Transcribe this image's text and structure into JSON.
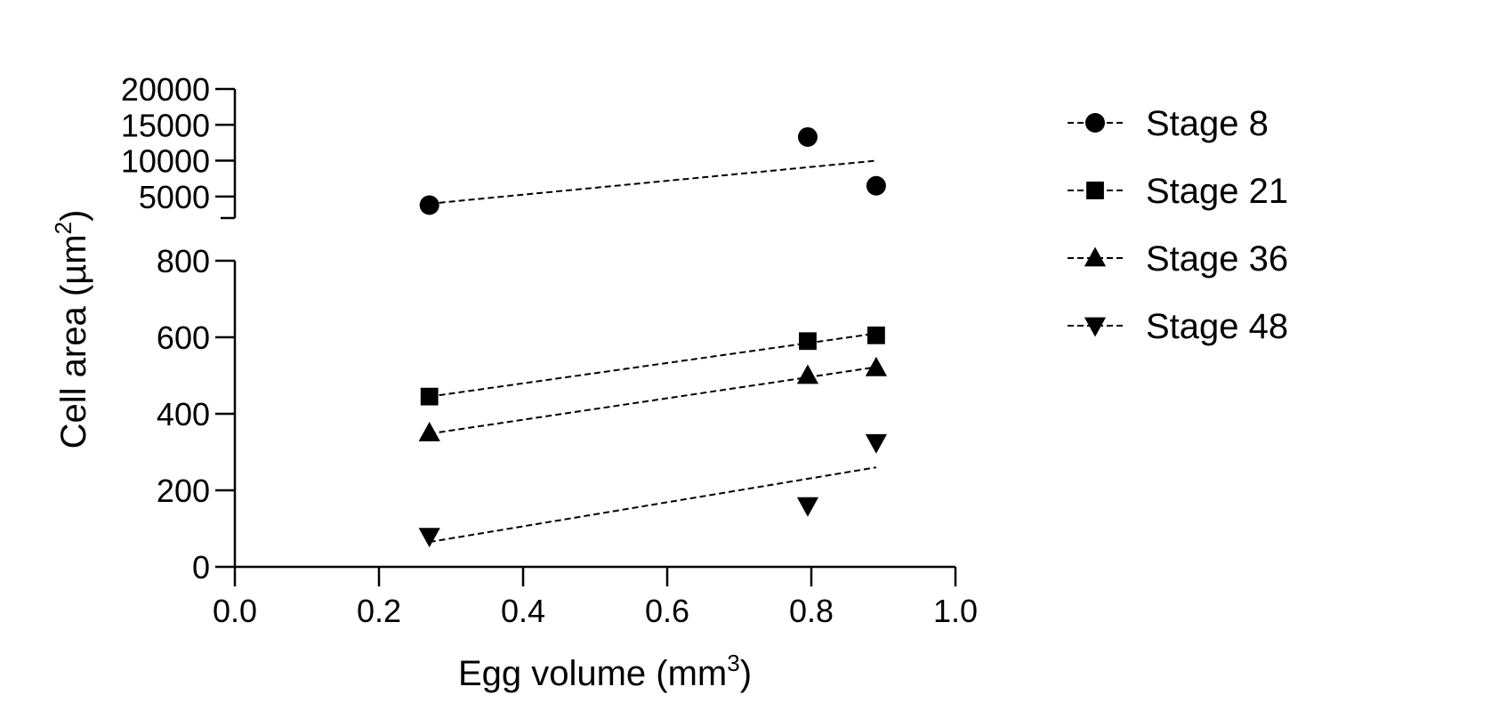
{
  "chart_data": {
    "type": "scatter",
    "xlabel": "Egg volume (mm",
    "xlabel_sup": "3",
    "xlabel_end": ")",
    "ylabel": "Cell area (µm",
    "ylabel_sup": "2",
    "ylabel_end": ")",
    "xlim": [
      0,
      1.0
    ],
    "x_ticks": [
      "0.0",
      "0.2",
      "0.4",
      "0.6",
      "0.8",
      "1.0"
    ],
    "y_axis_broken": true,
    "ylim_lower": [
      0,
      800
    ],
    "y_ticks_lower": [
      "0",
      "200",
      "400",
      "600",
      "800"
    ],
    "ylim_upper": [
      2000,
      20000
    ],
    "y_ticks_upper": [
      "5000",
      "10000",
      "15000",
      "20000"
    ],
    "legend_position": "right",
    "grid": false,
    "series": [
      {
        "name": "Stage 8",
        "marker": "circle",
        "x": [
          0.27,
          0.795,
          0.89
        ],
        "y": [
          3800,
          13300,
          6500
        ],
        "fit": {
          "x": [
            0.27,
            0.89
          ],
          "y": [
            4000,
            10000
          ]
        }
      },
      {
        "name": "Stage 21",
        "marker": "square",
        "x": [
          0.27,
          0.795,
          0.89
        ],
        "y": [
          445,
          590,
          605
        ],
        "fit": {
          "x": [
            0.27,
            0.89
          ],
          "y": [
            445,
            610
          ]
        }
      },
      {
        "name": "Stage 36",
        "marker": "triangle-up",
        "x": [
          0.27,
          0.795,
          0.89
        ],
        "y": [
          350,
          500,
          520
        ],
        "fit": {
          "x": [
            0.27,
            0.89
          ],
          "y": [
            348,
            522
          ]
        }
      },
      {
        "name": "Stage 48",
        "marker": "triangle-down",
        "x": [
          0.27,
          0.795,
          0.89
        ],
        "y": [
          80,
          160,
          325
        ],
        "fit": {
          "x": [
            0.27,
            0.89
          ],
          "y": [
            65,
            260
          ]
        }
      }
    ]
  }
}
